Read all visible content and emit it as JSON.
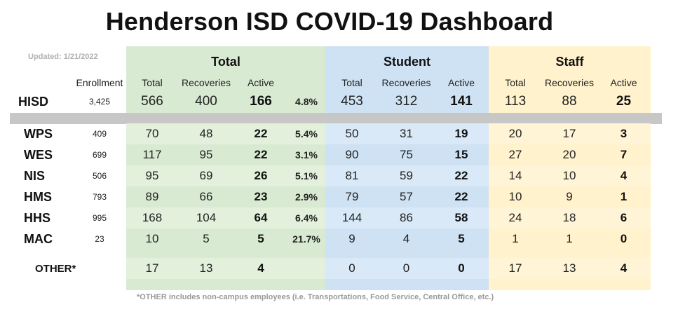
{
  "title": "Henderson ISD COVID-19 Dashboard",
  "updated": "Updated: 1/21/2022",
  "colors": {
    "total_bg": "#d9ead3",
    "student_bg": "#cfe2f3",
    "staff_bg": "#fff2cc",
    "divider": "#c7c7c7"
  },
  "groups": {
    "total": "Total",
    "student": "Student",
    "staff": "Staff"
  },
  "headers": {
    "enrollment": "Enrollment",
    "total": "Total",
    "recoveries": "Recoveries",
    "active": "Active",
    "student_total": "Total",
    "student_recoveries": "Recoveries",
    "student_active": "Active",
    "staff_total": "Total",
    "staff_recoveries": "Recoveries",
    "staff_active": "Active"
  },
  "district": {
    "name": "HISD",
    "enrollment": "3,425",
    "total": "566",
    "recoveries": "400",
    "active": "166",
    "pct": "4.8%",
    "student_total": "453",
    "student_recoveries": "312",
    "student_active": "141",
    "staff_total": "113",
    "staff_recoveries": "88",
    "staff_active": "25"
  },
  "campuses": [
    {
      "name": "WPS",
      "enrollment": "409",
      "total": "70",
      "recoveries": "48",
      "active": "22",
      "pct": "5.4%",
      "student_total": "50",
      "student_recoveries": "31",
      "student_active": "19",
      "staff_total": "20",
      "staff_recoveries": "17",
      "staff_active": "3"
    },
    {
      "name": "WES",
      "enrollment": "699",
      "total": "117",
      "recoveries": "95",
      "active": "22",
      "pct": "3.1%",
      "student_total": "90",
      "student_recoveries": "75",
      "student_active": "15",
      "staff_total": "27",
      "staff_recoveries": "20",
      "staff_active": "7"
    },
    {
      "name": "NIS",
      "enrollment": "506",
      "total": "95",
      "recoveries": "69",
      "active": "26",
      "pct": "5.1%",
      "student_total": "81",
      "student_recoveries": "59",
      "student_active": "22",
      "staff_total": "14",
      "staff_recoveries": "10",
      "staff_active": "4"
    },
    {
      "name": "HMS",
      "enrollment": "793",
      "total": "89",
      "recoveries": "66",
      "active": "23",
      "pct": "2.9%",
      "student_total": "79",
      "student_recoveries": "57",
      "student_active": "22",
      "staff_total": "10",
      "staff_recoveries": "9",
      "staff_active": "1"
    },
    {
      "name": "HHS",
      "enrollment": "995",
      "total": "168",
      "recoveries": "104",
      "active": "64",
      "pct": "6.4%",
      "student_total": "144",
      "student_recoveries": "86",
      "student_active": "58",
      "staff_total": "24",
      "staff_recoveries": "18",
      "staff_active": "6"
    },
    {
      "name": "MAC",
      "enrollment": "23",
      "total": "10",
      "recoveries": "5",
      "active": "5",
      "pct": "21.7%",
      "student_total": "9",
      "student_recoveries": "4",
      "student_active": "5",
      "staff_total": "1",
      "staff_recoveries": "1",
      "staff_active": "0"
    }
  ],
  "other": {
    "name": "OTHER*",
    "total": "17",
    "recoveries": "13",
    "active": "4",
    "student_total": "0",
    "student_recoveries": "0",
    "student_active": "0",
    "staff_total": "17",
    "staff_recoveries": "13",
    "staff_active": "4"
  },
  "footnote": "*OTHER includes non-campus employees (i.e. Transportations, Food Service, Central Office, etc.)"
}
